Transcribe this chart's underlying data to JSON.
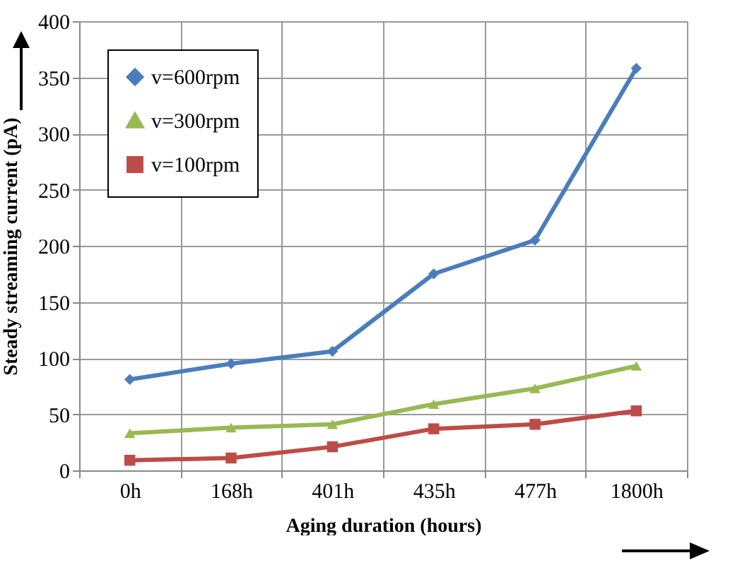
{
  "chart_data": {
    "type": "line",
    "xlabel": "Aging duration (hours)",
    "ylabel": "Steady streaming current (pA)",
    "categories": [
      "0h",
      "168h",
      "401h",
      "435h",
      "477h",
      "1800h"
    ],
    "series": [
      {
        "name": "v=600rpm",
        "color": "#4a7ebb",
        "marker": "diamond",
        "values": [
          81,
          95,
          106,
          175,
          205,
          358
        ]
      },
      {
        "name": "v=300rpm",
        "color": "#98b954",
        "marker": "triangle",
        "values": [
          33,
          38,
          41,
          59,
          73,
          93
        ]
      },
      {
        "name": "v=100rpm",
        "color": "#be4b48",
        "marker": "square",
        "values": [
          9,
          11,
          21,
          37,
          41,
          53
        ]
      }
    ],
    "ylim": [
      0,
      400
    ],
    "yticks": [
      0,
      50,
      100,
      150,
      200,
      250,
      300,
      350,
      400
    ],
    "grid": true,
    "legend": "top left",
    "line_style": "solid"
  }
}
